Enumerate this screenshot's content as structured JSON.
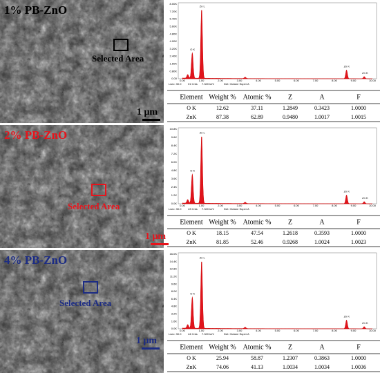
{
  "panels": [
    {
      "label": "1% PB-ZnO",
      "color": "#000000",
      "selected_area": "Selected Area",
      "scale_bar": "1 μm",
      "spectrum": {
        "yticks": [
          "8.00K",
          "7.20K",
          "6.40K",
          "5.60K",
          "4.80K",
          "4.00K",
          "3.20K",
          "2.40K",
          "1.60K",
          "0.80K",
          "0.00"
        ],
        "xticks": [
          "0.00",
          "1.00",
          "2.00",
          "3.00",
          "4.00",
          "5.00",
          "6.00",
          "7.00",
          "8.00",
          "9.00",
          "10.00"
        ],
        "peak_labels": [
          "O K",
          "Zn L",
          "Zn K",
          "Zn K"
        ],
        "footer": [
          "Lsec: 30.0",
          "31 Cnts",
          "7.320 keV",
          "Det: Octane Super A"
        ]
      },
      "table": {
        "header": [
          "Element",
          "Weight %",
          "Atomic %",
          "Z",
          "A",
          "F"
        ],
        "rows": [
          [
            "O K",
            "12.62",
            "37.11",
            "1.2849",
            "0.3423",
            "1.0000"
          ],
          [
            "ZnK",
            "87.38",
            "62.89",
            "0.9480",
            "1.0017",
            "1.0015"
          ]
        ]
      }
    },
    {
      "label": "2% PB-ZnO",
      "color": "#e8141c",
      "selected_area": "Selected Area",
      "scale_bar": "1 μm",
      "spectrum": {
        "yticks": [
          "10.8K",
          "9.6K",
          "8.4K",
          "7.2K",
          "6.0K",
          "4.8K",
          "3.6K",
          "2.4K",
          "1.2K",
          "0.0K"
        ],
        "xticks": [
          "0.00",
          "1.00",
          "2.00",
          "3.00",
          "4.00",
          "5.00",
          "6.00",
          "7.00",
          "8.00",
          "9.00",
          "10.00"
        ],
        "peak_labels": [
          "O K",
          "Zn L",
          "Zn K",
          "Zn K"
        ],
        "footer": [
          "Lsec: 30.0",
          "43 Cnts",
          "7.320 keV",
          "Det: Octane Super A"
        ]
      },
      "table": {
        "header": [
          "Element",
          "Weight %",
          "Atomic %",
          "Z",
          "A",
          "F"
        ],
        "rows": [
          [
            "O K",
            "18.15",
            "47.54",
            "1.2618",
            "0.3593",
            "1.0000"
          ],
          [
            "ZnK",
            "81.85",
            "52.46",
            "0.9268",
            "1.0024",
            "1.0023"
          ]
        ]
      }
    },
    {
      "label": "4% PB-ZnO",
      "color": "#1c2c84",
      "selected_area": "Selected Area",
      "scale_bar": "1 μm",
      "spectrum": {
        "yticks": [
          "16.0K",
          "14.4K",
          "12.8K",
          "11.2K",
          "9.6K",
          "8.0K",
          "6.4K",
          "4.8K",
          "3.2K",
          "1.6K",
          "0.0K"
        ],
        "xticks": [
          "0.00",
          "1.00",
          "2.00",
          "3.00",
          "4.00",
          "5.00",
          "6.00",
          "7.00",
          "8.00",
          "9.00",
          "10.00"
        ],
        "peak_labels": [
          "O K",
          "Zn L",
          "Zn K",
          "Zn K"
        ],
        "footer": [
          "Lsec: 30.0",
          "44 Cnts",
          "7.320 keV",
          "Det: Octane Super A"
        ]
      },
      "table": {
        "header": [
          "Element",
          "Weight %",
          "Atomic %",
          "Z",
          "A",
          "F"
        ],
        "rows": [
          [
            "O K",
            "25.94",
            "58.87",
            "1.2307",
            "0.3863",
            "1.0000"
          ],
          [
            "ZnK",
            "74.06",
            "41.13",
            "1.0034",
            "1.0034",
            "1.0036"
          ]
        ]
      }
    }
  ]
}
